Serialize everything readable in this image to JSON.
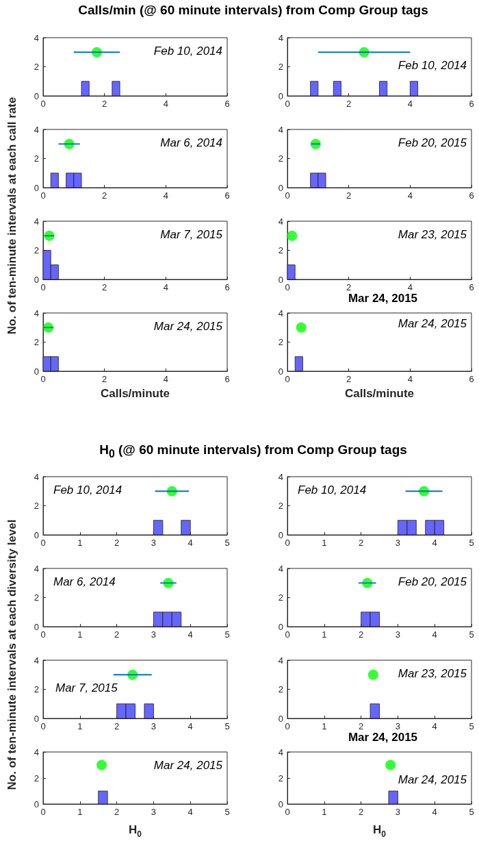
{
  "chart_data": [
    {
      "type": "histogram",
      "title": "Calls/min (@ 60 minute intervals) from Comp Group tags",
      "ylabel": "No. of ten-minute intervals at each call rate",
      "annotations": [
        "Feb 10, 2014"
      ],
      "xlim": [
        0,
        6
      ],
      "xticks": [
        0,
        2,
        4,
        6
      ],
      "ylim": [
        0,
        4
      ],
      "yticks": [
        0,
        2,
        4
      ],
      "marker": "circle",
      "series": [
        {
          "type": "histogram",
          "color": "#6666ff",
          "bins": [
            1.25,
            1.5,
            1.75,
            2,
            2.25,
            2.5
          ],
          "values": [
            1,
            0,
            0,
            0,
            1
          ]
        },
        {
          "type": "scatter",
          "color": "#00ff00",
          "x": [
            1.75
          ],
          "values": [
            3
          ],
          "xerrors": [
            0.75
          ]
        }
      ]
    },
    {
      "type": "histogram",
      "annotations": [
        "Feb 10, 2014"
      ],
      "xlim": [
        0,
        6
      ],
      "xticks": [
        0,
        2,
        4,
        6
      ],
      "ylim": [
        0,
        4
      ],
      "yticks": [
        0,
        2,
        4
      ],
      "marker": "circle",
      "series": [
        {
          "type": "histogram",
          "color": "#6666ff",
          "bins": [
            0.75,
            1,
            1.25,
            1.5,
            1.75,
            2,
            2.25,
            2.5,
            2.75,
            3,
            3.25,
            3.5,
            3.75,
            4,
            4.25
          ],
          "values": [
            1,
            0,
            0,
            1,
            0,
            0,
            0,
            0,
            0,
            1,
            0,
            0,
            0,
            1
          ]
        },
        {
          "type": "scatter",
          "color": "#00ff00",
          "x": [
            2.5
          ],
          "values": [
            3
          ],
          "xerrors": [
            1.5
          ]
        }
      ]
    },
    {
      "type": "histogram",
      "annotations": [
        "Mar 6, 2014"
      ],
      "xlim": [
        0,
        6
      ],
      "xticks": [
        0,
        2,
        4,
        6
      ],
      "ylim": [
        0,
        4
      ],
      "yticks": [
        0,
        2,
        4
      ],
      "marker": "circle",
      "series": [
        {
          "type": "histogram",
          "color": "#6666ff",
          "bins": [
            0.25,
            0.5,
            0.75,
            1,
            1.25
          ],
          "values": [
            1,
            0,
            1,
            1
          ]
        },
        {
          "type": "scatter",
          "color": "#00ff00",
          "x": [
            0.85
          ],
          "values": [
            3
          ],
          "xerrors": [
            0.35
          ]
        }
      ]
    },
    {
      "type": "histogram",
      "annotations": [
        "Feb 20, 2015"
      ],
      "xlim": [
        0,
        6
      ],
      "xticks": [
        0,
        2,
        4,
        6
      ],
      "ylim": [
        0,
        4
      ],
      "yticks": [
        0,
        2,
        4
      ],
      "marker": "circle",
      "series": [
        {
          "type": "histogram",
          "color": "#6666ff",
          "bins": [
            0.75,
            1,
            1.25
          ],
          "values": [
            1,
            1
          ]
        },
        {
          "type": "scatter",
          "color": "#00ff00",
          "x": [
            0.92
          ],
          "values": [
            3
          ],
          "xerrors": [
            0.15
          ]
        }
      ]
    },
    {
      "type": "histogram",
      "annotations": [
        "Mar 7, 2015"
      ],
      "xlim": [
        0,
        6
      ],
      "xticks": [
        0,
        2,
        4,
        6
      ],
      "ylim": [
        0,
        4
      ],
      "yticks": [
        0,
        2,
        4
      ],
      "marker": "circle",
      "series": [
        {
          "type": "histogram",
          "color": "#6666ff",
          "bins": [
            0,
            0.25,
            0.5
          ],
          "values": [
            2,
            1
          ]
        },
        {
          "type": "scatter",
          "color": "#00ff00",
          "x": [
            0.2
          ],
          "values": [
            3
          ],
          "xerrors": [
            0.16
          ]
        }
      ]
    },
    {
      "type": "histogram",
      "annotations": [
        "Mar 23, 2015"
      ],
      "xlim": [
        0,
        6
      ],
      "xticks": [
        0,
        2,
        4,
        6
      ],
      "ylim": [
        0,
        4
      ],
      "yticks": [
        0,
        2,
        4
      ],
      "marker": "circle",
      "series": [
        {
          "type": "histogram",
          "color": "#6666ff",
          "bins": [
            0,
            0.25
          ],
          "values": [
            1
          ]
        },
        {
          "type": "scatter",
          "color": "#00ff00",
          "x": [
            0.15
          ],
          "values": [
            3
          ]
        }
      ]
    },
    {
      "type": "histogram",
      "xlabel": "Calls/minute",
      "annotations": [
        "Mar 24, 2015"
      ],
      "xlim": [
        0,
        6
      ],
      "xticks": [
        0,
        2,
        4,
        6
      ],
      "ylim": [
        0,
        4
      ],
      "yticks": [
        0,
        2,
        4
      ],
      "marker": "circle",
      "series": [
        {
          "type": "histogram",
          "color": "#6666ff",
          "bins": [
            0,
            0.25,
            0.5
          ],
          "values": [
            1,
            1
          ]
        },
        {
          "type": "scatter",
          "color": "#00ff00",
          "x": [
            0.17
          ],
          "values": [
            3
          ],
          "xerrors": [
            0.17
          ]
        }
      ]
    },
    {
      "type": "histogram",
      "title": "Mar 24, 2015",
      "xlabel": "Calls/minute",
      "annotations": [
        "Mar 24, 2015"
      ],
      "xlim": [
        0,
        6
      ],
      "xticks": [
        0,
        2,
        4,
        6
      ],
      "ylim": [
        0,
        4
      ],
      "yticks": [
        0,
        2,
        4
      ],
      "marker": "circle",
      "series": [
        {
          "type": "histogram",
          "color": "#6666ff",
          "bins": [
            0.25,
            0.5
          ],
          "values": [
            1
          ]
        },
        {
          "type": "scatter",
          "color": "#00ff00",
          "x": [
            0.45
          ],
          "values": [
            3
          ]
        }
      ]
    },
    {
      "type": "histogram",
      "title": "H$_{0}$ (@ 60 minute intervals) from Comp Group tags",
      "ylabel": "No. of ten-minute intervals at each diversity level",
      "annotations": [
        "Feb 10, 2014"
      ],
      "xlim": [
        0,
        5
      ],
      "xticks": [
        0,
        1,
        2,
        3,
        4,
        5
      ],
      "ylim": [
        0,
        4
      ],
      "yticks": [
        0,
        2,
        4
      ],
      "marker": "circle",
      "series": [
        {
          "type": "histogram",
          "color": "#6666ff",
          "bins": [
            3,
            3.25,
            3.5,
            3.75,
            4
          ],
          "values": [
            1,
            0,
            0,
            1
          ]
        },
        {
          "type": "scatter",
          "color": "#00ff00",
          "x": [
            3.5
          ],
          "values": [
            3
          ],
          "xerrors": [
            0.46
          ]
        }
      ]
    },
    {
      "type": "histogram",
      "annotations": [
        "Feb 10, 2014"
      ],
      "xlim": [
        0,
        5
      ],
      "xticks": [
        0,
        1,
        2,
        3,
        4,
        5
      ],
      "ylim": [
        0,
        4
      ],
      "yticks": [
        0,
        2,
        4
      ],
      "marker": "circle",
      "series": [
        {
          "type": "histogram",
          "color": "#6666ff",
          "bins": [
            3,
            3.25,
            3.5,
            3.75,
            4,
            4.25
          ],
          "values": [
            1,
            1,
            0,
            1,
            1
          ]
        },
        {
          "type": "scatter",
          "color": "#00ff00",
          "x": [
            3.71
          ],
          "values": [
            3
          ],
          "xerrors": [
            0.5
          ]
        }
      ]
    },
    {
      "type": "histogram",
      "annotations": [
        "Mar 6, 2014"
      ],
      "xlim": [
        0,
        5
      ],
      "xticks": [
        0,
        1,
        2,
        3,
        4,
        5
      ],
      "ylim": [
        0,
        4
      ],
      "yticks": [
        0,
        2,
        4
      ],
      "marker": "circle",
      "series": [
        {
          "type": "histogram",
          "color": "#6666ff",
          "bins": [
            3,
            3.25,
            3.5,
            3.75
          ],
          "values": [
            1,
            1,
            1
          ]
        },
        {
          "type": "scatter",
          "color": "#00ff00",
          "x": [
            3.4
          ],
          "values": [
            3
          ],
          "xerrors": [
            0.22
          ]
        }
      ]
    },
    {
      "type": "histogram",
      "annotations": [
        "Feb 20, 2015"
      ],
      "xlim": [
        0,
        5
      ],
      "xticks": [
        0,
        1,
        2,
        3,
        4,
        5
      ],
      "ylim": [
        0,
        4
      ],
      "yticks": [
        0,
        2,
        4
      ],
      "marker": "circle",
      "series": [
        {
          "type": "histogram",
          "color": "#6666ff",
          "bins": [
            2,
            2.25,
            2.5
          ],
          "values": [
            1,
            1
          ]
        },
        {
          "type": "scatter",
          "color": "#00ff00",
          "x": [
            2.17
          ],
          "values": [
            3
          ],
          "xerrors": [
            0.24
          ]
        }
      ]
    },
    {
      "type": "histogram",
      "annotations": [
        "Mar 7, 2015"
      ],
      "xlim": [
        0,
        5
      ],
      "xticks": [
        0,
        1,
        2,
        3,
        4,
        5
      ],
      "ylim": [
        0,
        4
      ],
      "yticks": [
        0,
        2,
        4
      ],
      "marker": "circle",
      "series": [
        {
          "type": "histogram",
          "color": "#6666ff",
          "bins": [
            2,
            2.25,
            2.5,
            2.75,
            3
          ],
          "values": [
            1,
            1,
            0,
            1
          ]
        },
        {
          "type": "scatter",
          "color": "#00ff00",
          "x": [
            2.43
          ],
          "values": [
            3
          ],
          "xerrors": [
            0.52
          ]
        }
      ]
    },
    {
      "type": "histogram",
      "annotations": [
        "Mar 23, 2015"
      ],
      "xlim": [
        0,
        5
      ],
      "xticks": [
        0,
        1,
        2,
        3,
        4,
        5
      ],
      "ylim": [
        0,
        4
      ],
      "yticks": [
        0,
        2,
        4
      ],
      "marker": "circle",
      "series": [
        {
          "type": "histogram",
          "color": "#6666ff",
          "bins": [
            2.25,
            2.5
          ],
          "values": [
            1
          ]
        },
        {
          "type": "scatter",
          "color": "#00ff00",
          "x": [
            2.33
          ],
          "values": [
            3
          ]
        }
      ]
    },
    {
      "type": "histogram",
      "xlabel": "H$_{0}$",
      "annotations": [
        "Mar 24, 2015"
      ],
      "xlim": [
        0,
        5
      ],
      "xticks": [
        0,
        1,
        2,
        3,
        4,
        5
      ],
      "ylim": [
        0,
        4
      ],
      "yticks": [
        0,
        2,
        4
      ],
      "marker": "circle",
      "series": [
        {
          "type": "histogram",
          "color": "#6666ff",
          "bins": [
            1.5,
            1.75
          ],
          "values": [
            1
          ]
        },
        {
          "type": "scatter",
          "color": "#00ff00",
          "x": [
            1.59
          ],
          "values": [
            3
          ]
        }
      ]
    },
    {
      "type": "histogram",
      "title": "Mar 24, 2015",
      "xlabel": "H$_{0}$",
      "annotations": [
        "Mar 24, 2015"
      ],
      "xlim": [
        0,
        5
      ],
      "xticks": [
        0,
        1,
        2,
        3,
        4,
        5
      ],
      "ylim": [
        0,
        4
      ],
      "yticks": [
        0,
        2,
        4
      ],
      "marker": "circle",
      "series": [
        {
          "type": "histogram",
          "color": "#6666ff",
          "bins": [
            2.75,
            3
          ],
          "values": [
            1
          ]
        },
        {
          "type": "scatter",
          "color": "#00ff00",
          "x": [
            2.8
          ],
          "values": [
            3
          ]
        }
      ]
    }
  ]
}
